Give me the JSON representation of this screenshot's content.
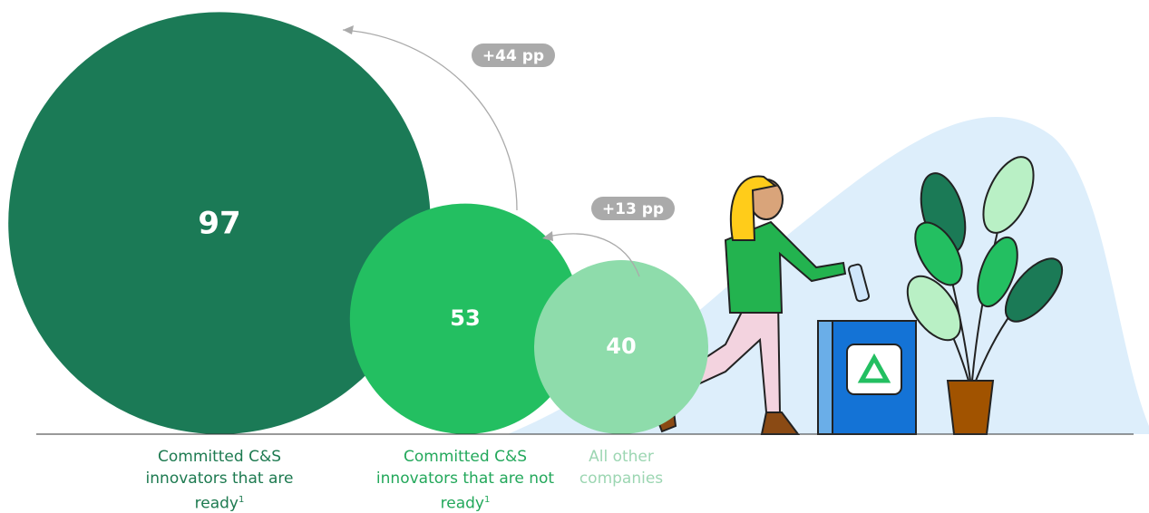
{
  "chart_data": {
    "type": "bubble",
    "categories": [
      "Committed C&S innovators that are ready",
      "Committed C&S innovators that are not ready",
      "All other companies"
    ],
    "footnote_marks": [
      "1",
      "1"
    ],
    "values": [
      97,
      53,
      40
    ],
    "colors": [
      "#1b7a56",
      "#23bf61",
      "#8edcab"
    ],
    "label_colors": [
      "#1d7a50",
      "#23a85b",
      "#9cd6b2"
    ],
    "annotations": [
      "+44 pp",
      "+13 pp"
    ]
  }
}
